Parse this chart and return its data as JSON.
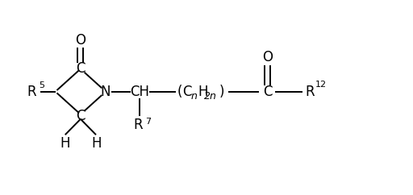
{
  "bg_color": "#ffffff",
  "line_color": "#000000",
  "font_size_atoms": 12,
  "font_size_subscript": 9,
  "font_size_superscript": 8,
  "figsize": [
    5.12,
    2.42
  ],
  "dpi": 100,
  "xlim": [
    0,
    10
  ],
  "ylim": [
    0,
    4.8
  ]
}
